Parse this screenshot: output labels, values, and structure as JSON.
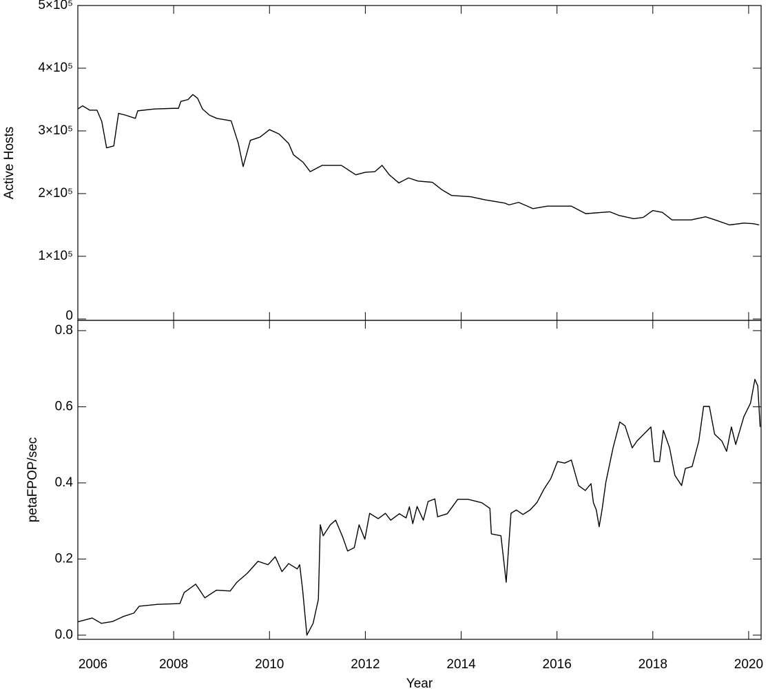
{
  "chart_data": [
    {
      "type": "line",
      "ylabel": "Active Hosts",
      "color": "#000000",
      "xlim": [
        2006,
        2020.26
      ],
      "xticks": [
        2006,
        2008,
        2010,
        2012,
        2014,
        2016,
        2018,
        2020
      ],
      "ylim": [
        -2200,
        500000
      ],
      "yticks": [
        0,
        {
          "value": 100000,
          "label": "1×10⁵"
        },
        {
          "value": 200000,
          "label": "2×10⁵"
        },
        {
          "value": 300000,
          "label": "3×10⁵"
        },
        {
          "value": 400000,
          "label": "4×10⁵"
        },
        {
          "value": 500000,
          "label": "5×10⁵"
        }
      ],
      "x": [
        2006.0,
        2006.1,
        2006.25,
        2006.4,
        2006.5,
        2006.6,
        2006.75,
        2006.85,
        2007.0,
        2007.2,
        2007.25,
        2007.6,
        2008.0,
        2008.1,
        2008.15,
        2008.3,
        2008.4,
        2008.5,
        2008.6,
        2008.75,
        2008.9,
        2009.2,
        2009.35,
        2009.45,
        2009.6,
        2009.8,
        2010.0,
        2010.2,
        2010.4,
        2010.5,
        2010.7,
        2010.85,
        2011.1,
        2011.5,
        2011.8,
        2012.0,
        2012.2,
        2012.35,
        2012.5,
        2012.7,
        2012.9,
        2013.1,
        2013.4,
        2013.6,
        2013.8,
        2014.2,
        2014.5,
        2014.9,
        2015.0,
        2015.2,
        2015.5,
        2015.8,
        2016.3,
        2016.6,
        2017.1,
        2017.3,
        2017.6,
        2017.8,
        2018.0,
        2018.2,
        2018.4,
        2018.8,
        2019.1,
        2019.3,
        2019.6,
        2019.9,
        2020.1,
        2020.22
      ],
      "values": [
        335000,
        340000,
        333000,
        333000,
        315000,
        273000,
        276000,
        328000,
        325000,
        320000,
        332000,
        335000,
        336000,
        336000,
        347000,
        350000,
        358000,
        352000,
        335000,
        325000,
        320000,
        316000,
        280000,
        243000,
        285000,
        290000,
        302000,
        295000,
        280000,
        262000,
        250000,
        235000,
        245000,
        245000,
        230000,
        234000,
        235000,
        245000,
        230000,
        217000,
        225000,
        220000,
        218000,
        206000,
        197000,
        195000,
        190000,
        185000,
        182000,
        186000,
        176000,
        180000,
        180000,
        168000,
        171000,
        165000,
        160000,
        162000,
        173000,
        170000,
        158000,
        158000,
        163000,
        158000,
        150000,
        153000,
        152000,
        150000
      ]
    },
    {
      "type": "line",
      "ylabel": "petaFPOP/sec",
      "xlabel": "Year",
      "color": "#000000",
      "xlim": [
        2006,
        2020.26
      ],
      "xticks": [
        2006,
        2008,
        2010,
        2012,
        2014,
        2016,
        2018,
        2020
      ],
      "ylim": [
        -0.011,
        0.827
      ],
      "yticks": [
        {
          "value": 0,
          "label": "0.0"
        },
        0.2,
        0.4,
        0.6,
        0.8
      ],
      "x": [
        2006.0,
        2006.3,
        2006.49,
        2006.73,
        2006.95,
        2007.17,
        2007.28,
        2007.67,
        2008.13,
        2008.22,
        2008.46,
        2008.65,
        2008.89,
        2009.18,
        2009.32,
        2009.54,
        2009.76,
        2009.97,
        2010.12,
        2010.26,
        2010.4,
        2010.58,
        2010.63,
        2010.69,
        2010.78,
        2010.91,
        2011.02,
        2011.06,
        2011.12,
        2011.27,
        2011.38,
        2011.53,
        2011.63,
        2011.77,
        2011.87,
        2011.99,
        2012.09,
        2012.27,
        2012.42,
        2012.53,
        2012.71,
        2012.85,
        2012.92,
        2012.99,
        2013.08,
        2013.21,
        2013.31,
        2013.45,
        2013.51,
        2013.71,
        2013.93,
        2014.14,
        2014.43,
        2014.6,
        2014.63,
        2014.83,
        2014.94,
        2015.04,
        2015.15,
        2015.29,
        2015.44,
        2015.58,
        2015.73,
        2015.87,
        2016.01,
        2016.16,
        2016.3,
        2016.45,
        2016.59,
        2016.71,
        2016.76,
        2016.82,
        2016.88,
        2016.94,
        2017.02,
        2017.17,
        2017.31,
        2017.42,
        2017.57,
        2017.67,
        2017.81,
        2017.96,
        2018.03,
        2018.14,
        2018.22,
        2018.35,
        2018.46,
        2018.6,
        2018.68,
        2018.82,
        2018.96,
        2019.06,
        2019.18,
        2019.29,
        2019.44,
        2019.54,
        2019.64,
        2019.73,
        2019.9,
        2020.04,
        2020.13,
        2020.19,
        2020.24
      ],
      "values": [
        0.035,
        0.045,
        0.031,
        0.036,
        0.049,
        0.058,
        0.076,
        0.081,
        0.083,
        0.112,
        0.134,
        0.098,
        0.118,
        0.116,
        0.139,
        0.163,
        0.194,
        0.185,
        0.206,
        0.167,
        0.188,
        0.174,
        0.185,
        0.121,
        0.0,
        0.031,
        0.094,
        0.29,
        0.261,
        0.29,
        0.302,
        0.257,
        0.221,
        0.23,
        0.29,
        0.252,
        0.32,
        0.306,
        0.32,
        0.302,
        0.319,
        0.308,
        0.337,
        0.293,
        0.338,
        0.302,
        0.351,
        0.358,
        0.311,
        0.319,
        0.357,
        0.357,
        0.348,
        0.333,
        0.266,
        0.261,
        0.139,
        0.32,
        0.329,
        0.317,
        0.329,
        0.348,
        0.384,
        0.411,
        0.456,
        0.452,
        0.46,
        0.393,
        0.38,
        0.398,
        0.348,
        0.329,
        0.285,
        0.329,
        0.402,
        0.492,
        0.56,
        0.55,
        0.492,
        0.51,
        0.528,
        0.547,
        0.456,
        0.456,
        0.538,
        0.492,
        0.42,
        0.393,
        0.438,
        0.443,
        0.51,
        0.601,
        0.601,
        0.528,
        0.51,
        0.483,
        0.547,
        0.501,
        0.574,
        0.61,
        0.672,
        0.655,
        0.547
      ]
    }
  ]
}
